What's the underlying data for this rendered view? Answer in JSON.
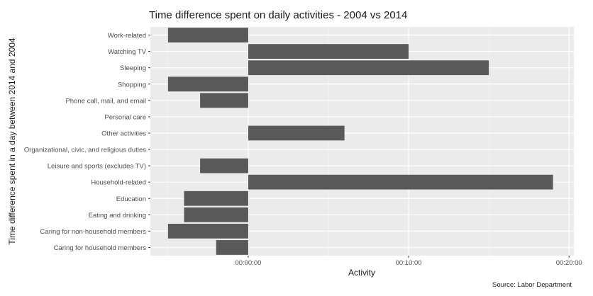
{
  "chart_data": {
    "type": "bar",
    "orientation": "horizontal",
    "title": "Time difference spent on daily activities - 2004 vs 2014",
    "xlabel": "Activity",
    "ylabel": "Time difference spent in a day between 2014 and 2004",
    "caption": "Source: Labor Department",
    "x_unit": "minutes",
    "xlim": [
      -6.1,
      20.3
    ],
    "x_ticks": [
      {
        "value": 0,
        "label": "00:00:00"
      },
      {
        "value": 10,
        "label": "00:10:00"
      },
      {
        "value": 20,
        "label": "00:20:00"
      }
    ],
    "categories": [
      "Work-related",
      "Watching TV",
      "Sleeping",
      "Shopping",
      "Phone call, mail, and email",
      "Personal care",
      "Other activities",
      "Organizational, civic, and religious duties",
      "Leisure and sports (excludes TV)",
      "Household-related",
      "Education",
      "Eating and drinking",
      "Caring for non-household members",
      "Caring for household members"
    ],
    "values": [
      -5,
      10,
      15,
      -5,
      -3,
      0,
      6,
      0,
      -3,
      19,
      -4,
      -4,
      -5,
      -2
    ],
    "bar_color": "#595959",
    "panel_color": "#ebebeb",
    "grid": true
  }
}
